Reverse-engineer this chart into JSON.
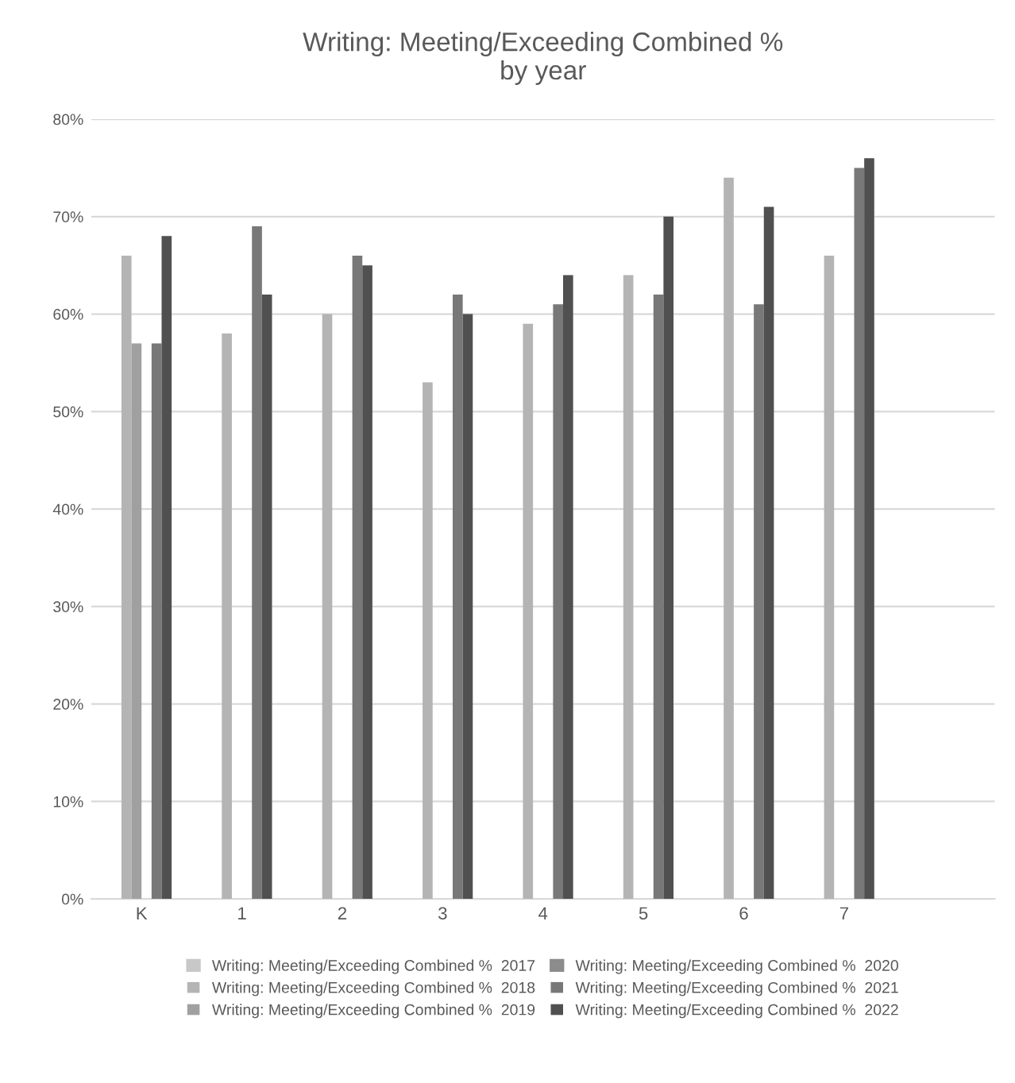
{
  "chart_data": {
    "type": "bar",
    "title": "Writing: Meeting/Exceeding Combined %\nby year",
    "categories": [
      "K",
      "1",
      "2",
      "3",
      "4",
      "5",
      "6",
      "7",
      null
    ],
    "series": [
      {
        "name": "Writing: Meeting/Exceeding Combined %  2017",
        "color": "#c8c8c8",
        "values": [
          null,
          null,
          null,
          null,
          null,
          null,
          null,
          null,
          null
        ]
      },
      {
        "name": "Writing: Meeting/Exceeding Combined %  2018",
        "color": "#b4b4b4",
        "values": [
          66,
          58,
          60,
          53,
          59,
          64,
          74,
          66,
          null
        ]
      },
      {
        "name": "Writing: Meeting/Exceeding Combined %  2019",
        "color": "#a0a0a0",
        "values": [
          57,
          null,
          null,
          null,
          null,
          null,
          null,
          null,
          null
        ]
      },
      {
        "name": "Writing: Meeting/Exceeding Combined %  2020",
        "color": "#8c8c8c",
        "values": [
          null,
          null,
          null,
          null,
          null,
          null,
          null,
          null,
          null
        ]
      },
      {
        "name": "Writing: Meeting/Exceeding Combined %  2021",
        "color": "#787878",
        "values": [
          57,
          69,
          66,
          62,
          61,
          62,
          61,
          75,
          null
        ]
      },
      {
        "name": "Writing: Meeting/Exceeding Combined %  2022",
        "color": "#505050",
        "values": [
          68,
          62,
          65,
          60,
          64,
          70,
          71,
          76,
          null
        ]
      }
    ],
    "ylim": [
      0,
      80
    ],
    "yticks": [
      {
        "value": 0,
        "label": "0%"
      },
      {
        "value": 10,
        "label": "10%"
      },
      {
        "value": 20,
        "label": "20%"
      },
      {
        "value": 30,
        "label": "30%"
      },
      {
        "value": 40,
        "label": "40%"
      },
      {
        "value": 50,
        "label": "50%"
      },
      {
        "value": 60,
        "label": "60%"
      },
      {
        "value": 70,
        "label": "70%"
      },
      {
        "value": 80,
        "label": "80%"
      }
    ],
    "grid": "y",
    "legend": "bottom"
  }
}
